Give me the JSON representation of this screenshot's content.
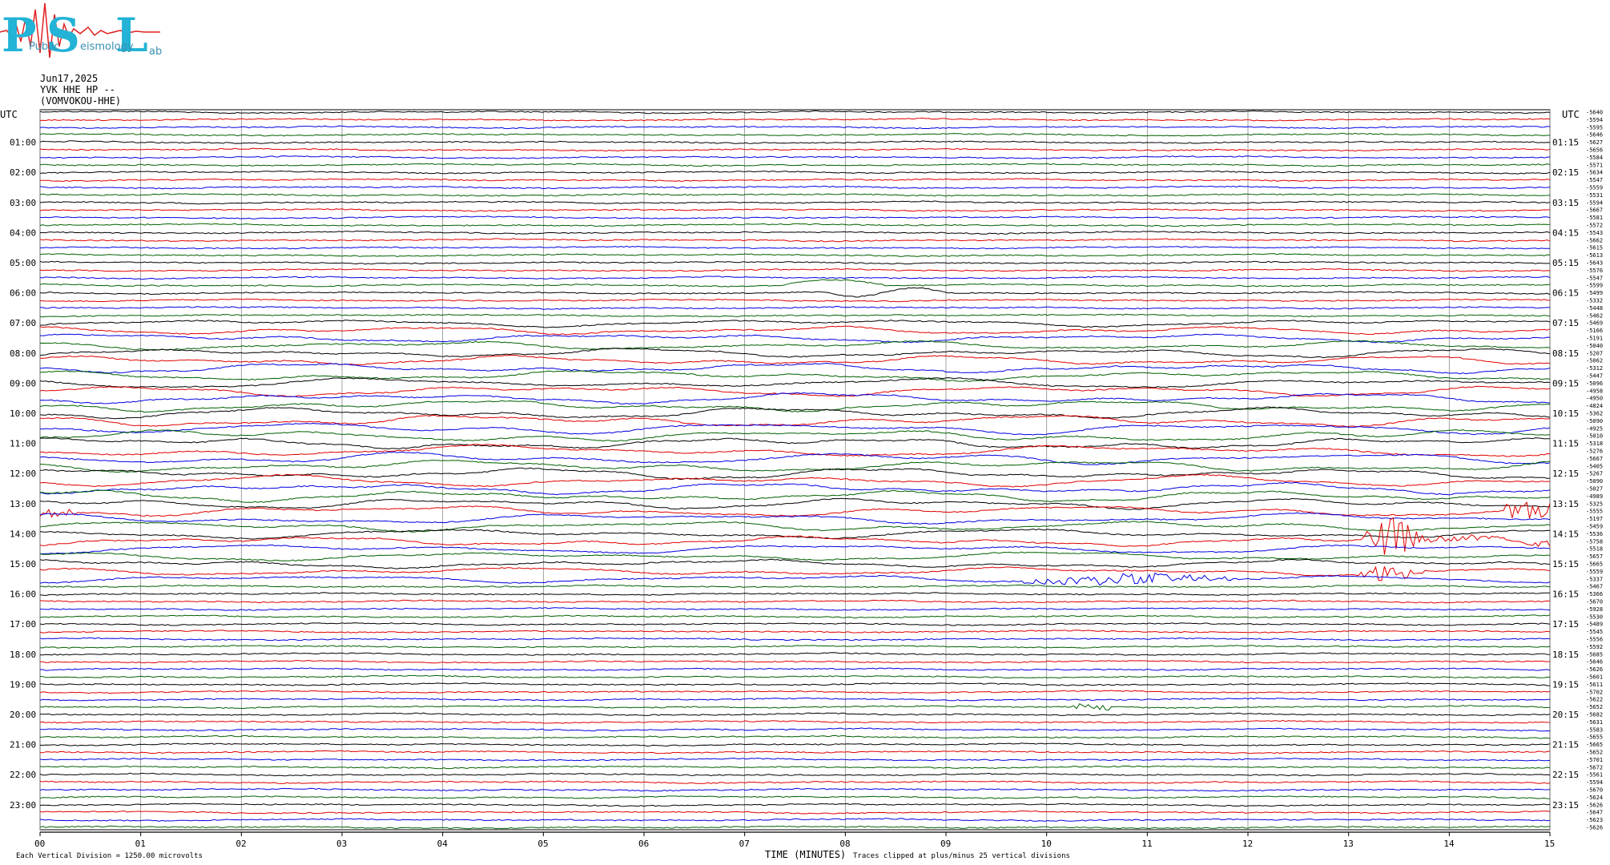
{
  "logo": {
    "letters": [
      "P",
      "S",
      "L"
    ],
    "sub": [
      "Public",
      "eismology",
      "ab"
    ]
  },
  "header": {
    "date": "Jun17,2025",
    "channel": "YVK HHE HP --",
    "station": "(VOMVOKOU-HHE)"
  },
  "colors": {
    "trace_cycle": [
      "#000000",
      "#e00000",
      "#0000e0",
      "#006000"
    ],
    "grid": "#888888",
    "frame": "#000000",
    "logo": "#22b3d6",
    "logo_wave": "#e02020"
  },
  "footer": {
    "note_left": "Each Vertical Division = 1250.00 microvolts",
    "axis_title": "TIME (MINUTES)",
    "note_right": "Traces clipped at plus/minus 25 vertical divisions"
  },
  "chart_data": {
    "type": "line",
    "title": "",
    "xlabel": "TIME (MINUTES)",
    "ylabel": "UTC",
    "x_ticks": [
      "00",
      "01",
      "02",
      "03",
      "04",
      "05",
      "06",
      "07",
      "08",
      "09",
      "10",
      "11",
      "12",
      "13",
      "14",
      "15"
    ],
    "xlim": [
      0,
      15
    ],
    "grid": true,
    "left_label_header": "UTC",
    "right_label_header": "UTC",
    "left_hour_labels": [
      "01:00",
      "02:00",
      "03:00",
      "04:00",
      "05:00",
      "06:00",
      "07:00",
      "08:00",
      "09:00",
      "10:00",
      "11:00",
      "12:00",
      "13:00",
      "14:00",
      "15:00",
      "16:00",
      "17:00",
      "18:00",
      "19:00",
      "20:00",
      "21:00",
      "22:00",
      "23:00"
    ],
    "right_hour_labels": [
      "01:15",
      "02:15",
      "03:15",
      "04:15",
      "05:15",
      "06:15",
      "07:15",
      "08:15",
      "09:15",
      "10:15",
      "11:15",
      "12:15",
      "13:15",
      "14:15",
      "15:15",
      "16:15",
      "17:15",
      "18:15",
      "19:15",
      "20:15",
      "21:15",
      "22:15",
      "23:15"
    ],
    "trace_count": 96,
    "trace_offsets": [
      -5640,
      -5594,
      -5595,
      -5646,
      -5627,
      -5656,
      -5584,
      -5571,
      -5634,
      -5547,
      -5559,
      -5531,
      -5594,
      -5667,
      -5581,
      -5572,
      -5543,
      -5662,
      -5615,
      -5613,
      -5643,
      -5576,
      -5547,
      -5599,
      -5499,
      -5332,
      -5448,
      -5462,
      -5469,
      -5166,
      -5191,
      -5040,
      -5207,
      -5062,
      -5312,
      -5447,
      -5096,
      -4958,
      -4950,
      -4824,
      -5362,
      -5090,
      -4925,
      -5010,
      -5318,
      -5276,
      -5667,
      -5405,
      -5267,
      -5090,
      -5027,
      -4989,
      -5325,
      -5555,
      -5197,
      -5459,
      -5536,
      -5758,
      -5518,
      -5657,
      -5665,
      -5559,
      -5337,
      -5467,
      -5366,
      -5670,
      -5928,
      -5530,
      -5489,
      -5545,
      -5556,
      -5592,
      -5685,
      -5646,
      -5626,
      -5601,
      -5611,
      -5702,
      -5622,
      -5652,
      -5682,
      -5631,
      -5583,
      -5655,
      -5665,
      -5652,
      -5701,
      -5672,
      -5561,
      -5594,
      -5670,
      -5624,
      -5626,
      -5647,
      -5623,
      -5626
    ]
  }
}
